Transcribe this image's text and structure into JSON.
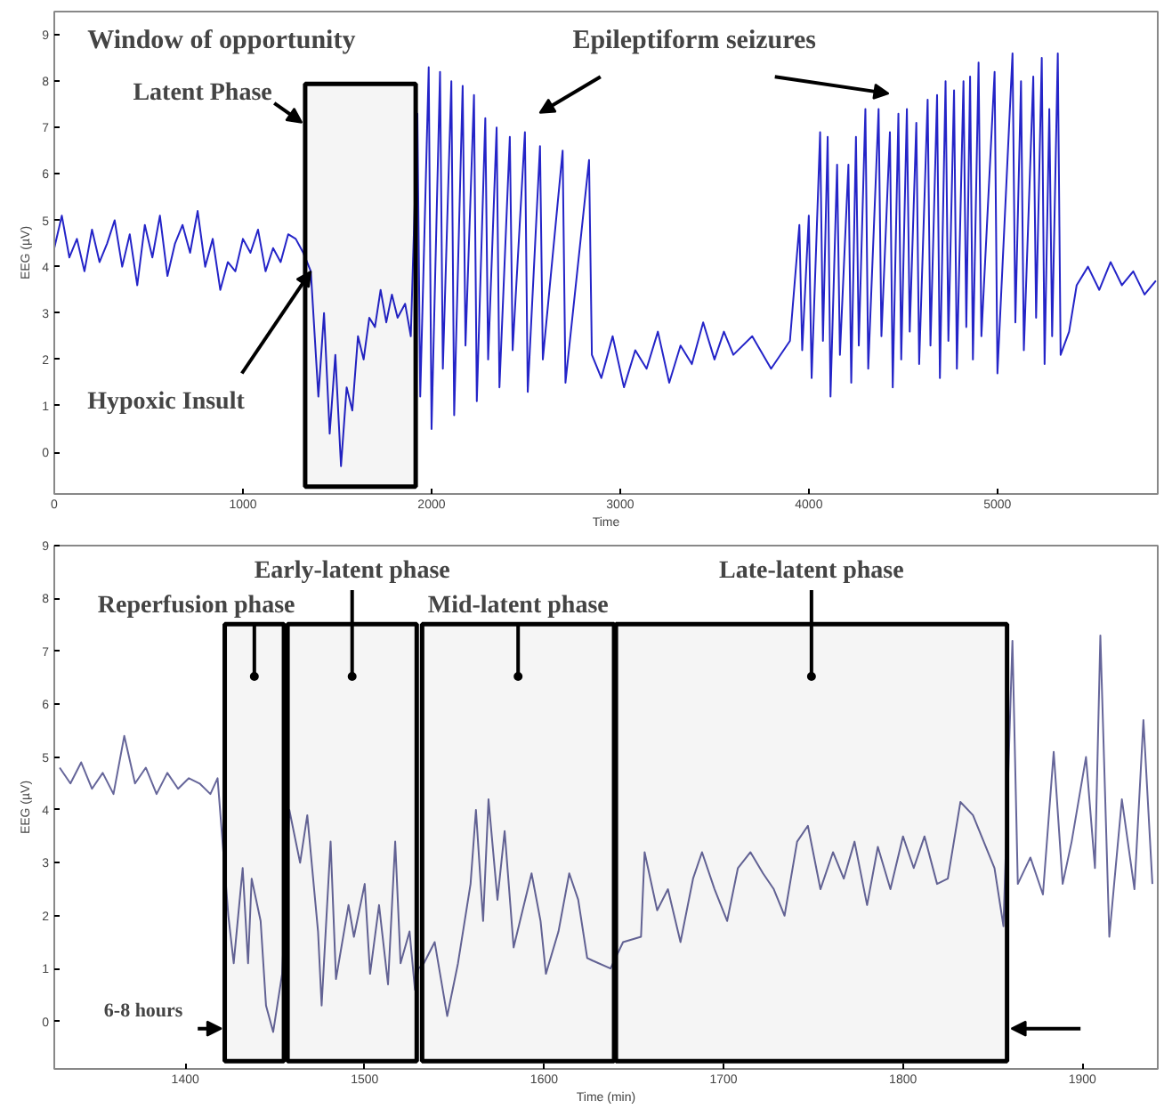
{
  "chart_data": [
    {
      "type": "line",
      "xlabel": "Time",
      "ylabel": "EEG (µV)",
      "xlim": [
        0,
        5850
      ],
      "ylim": [
        -0.9,
        9.5
      ],
      "xticks": [
        0,
        1000,
        2000,
        3000,
        4000,
        5000
      ],
      "yticks": [
        0,
        1,
        2,
        3,
        4,
        5,
        6,
        7,
        8,
        9
      ],
      "grid": false,
      "x": [
        0,
        40,
        80,
        120,
        160,
        200,
        240,
        280,
        320,
        360,
        400,
        440,
        480,
        520,
        560,
        600,
        640,
        680,
        720,
        760,
        800,
        840,
        880,
        920,
        960,
        1000,
        1040,
        1080,
        1120,
        1160,
        1200,
        1240,
        1280,
        1320,
        1360,
        1400,
        1430,
        1460,
        1490,
        1520,
        1550,
        1580,
        1610,
        1640,
        1670,
        1700,
        1730,
        1760,
        1790,
        1820,
        1860,
        1890,
        1925,
        1940,
        1985,
        2000,
        2045,
        2060,
        2105,
        2120,
        2165,
        2180,
        2225,
        2240,
        2285,
        2300,
        2345,
        2360,
        2415,
        2430,
        2495,
        2510,
        2575,
        2590,
        2695,
        2710,
        2835,
        2850,
        2900,
        2960,
        3020,
        3080,
        3140,
        3200,
        3260,
        3320,
        3380,
        3440,
        3500,
        3550,
        3600,
        3700,
        3800,
        3900,
        3950,
        3965,
        4000,
        4015,
        4060,
        4075,
        4100,
        4115,
        4150,
        4165,
        4210,
        4225,
        4250,
        4265,
        4300,
        4315,
        4370,
        4385,
        4430,
        4445,
        4475,
        4490,
        4520,
        4535,
        4570,
        4585,
        4630,
        4645,
        4680,
        4695,
        4725,
        4740,
        4770,
        4785,
        4820,
        4835,
        4855,
        4870,
        4900,
        4915,
        4985,
        5000,
        5080,
        5095,
        5125,
        5140,
        5190,
        5205,
        5235,
        5250,
        5275,
        5290,
        5320,
        5335,
        5380,
        5420,
        5480,
        5540,
        5600,
        5660,
        5720,
        5780,
        5840
      ],
      "series": [
        {
          "color": "#2424c8",
          "values": [
            4.4,
            5.1,
            4.2,
            4.6,
            3.9,
            4.8,
            4.1,
            4.5,
            5.0,
            4.0,
            4.7,
            3.6,
            4.9,
            4.2,
            5.1,
            3.8,
            4.5,
            4.9,
            4.3,
            5.2,
            4.0,
            4.6,
            3.5,
            4.1,
            3.9,
            4.6,
            4.3,
            4.8,
            3.9,
            4.4,
            4.1,
            4.7,
            4.6,
            4.3,
            3.9,
            1.2,
            3.0,
            0.4,
            2.1,
            -0.3,
            1.4,
            0.9,
            2.5,
            2.0,
            2.9,
            2.7,
            3.5,
            2.8,
            3.4,
            2.9,
            3.2,
            2.5,
            7.3,
            1.2,
            8.3,
            0.5,
            8.2,
            1.8,
            8.0,
            0.8,
            7.9,
            2.3,
            7.7,
            1.1,
            7.2,
            2.0,
            7.0,
            1.4,
            6.8,
            2.2,
            6.9,
            1.3,
            6.6,
            2.0,
            6.5,
            1.5,
            6.3,
            2.1,
            1.6,
            2.5,
            1.4,
            2.2,
            1.8,
            2.6,
            1.5,
            2.3,
            1.9,
            2.8,
            2.0,
            2.6,
            2.1,
            2.5,
            1.8,
            2.4,
            4.9,
            2.2,
            5.1,
            1.6,
            6.9,
            2.4,
            6.8,
            1.2,
            6.2,
            2.1,
            6.2,
            1.5,
            6.8,
            2.3,
            7.4,
            1.8,
            7.4,
            2.5,
            6.9,
            1.4,
            7.3,
            2.0,
            7.4,
            2.6,
            7.1,
            1.9,
            7.6,
            2.3,
            7.7,
            1.6,
            8.0,
            2.4,
            7.8,
            1.8,
            8.0,
            2.7,
            8.1,
            2.0,
            8.4,
            2.5,
            8.2,
            1.7,
            8.6,
            2.8,
            8.0,
            2.2,
            8.1,
            2.9,
            8.5,
            1.9,
            7.4,
            2.5,
            8.6,
            2.1,
            2.6,
            3.6,
            4.0,
            3.5,
            4.1,
            3.6,
            3.9,
            3.4,
            3.7
          ]
        }
      ],
      "bands": [
        {
          "axis": "x",
          "from": 1330,
          "to": 1916,
          "label": "Latent Phase",
          "color": "#000000"
        }
      ],
      "annotations": [
        "Window of opportunity",
        {
          "text": "Hypoxic Insult",
          "x": 1360,
          "y": 3.9
        },
        "Epileptiform seizures"
      ]
    },
    {
      "type": "line",
      "xlabel": "Time (min)",
      "ylabel": "EEG (µV)",
      "xlim": [
        1327,
        1942
      ],
      "ylim": [
        -0.9,
        9
      ],
      "xticks": [
        1400,
        1500,
        1600,
        1700,
        1800,
        1900
      ],
      "yticks": [
        0,
        1,
        2,
        3,
        4,
        5,
        6,
        7,
        8,
        9
      ],
      "grid": false,
      "x": [
        1330,
        1336,
        1342,
        1348,
        1354,
        1360,
        1366,
        1372,
        1378,
        1384,
        1390,
        1396,
        1402,
        1408,
        1414,
        1418,
        1424,
        1427,
        1432,
        1435,
        1437,
        1442,
        1445,
        1449,
        1454,
        1458,
        1464,
        1468,
        1474,
        1476,
        1481,
        1484,
        1491,
        1494,
        1500,
        1503,
        1508,
        1513,
        1517,
        1520,
        1525,
        1528,
        1530,
        1533,
        1539,
        1546,
        1552,
        1559,
        1562,
        1566,
        1569,
        1574,
        1578,
        1583,
        1588,
        1593,
        1598,
        1601,
        1608,
        1614,
        1619,
        1624,
        1627,
        1637,
        1644,
        1654,
        1656,
        1663,
        1669,
        1676,
        1683,
        1688,
        1695,
        1702,
        1708,
        1715,
        1722,
        1728,
        1734,
        1741,
        1747,
        1754,
        1761,
        1767,
        1773,
        1780,
        1786,
        1793,
        1800,
        1806,
        1812,
        1819,
        1825,
        1832,
        1839,
        1845,
        1851,
        1856,
        1861,
        1864,
        1871,
        1878,
        1884,
        1889,
        1894,
        1902,
        1907,
        1910,
        1915,
        1922,
        1929,
        1934,
        1939
      ],
      "series": [
        {
          "color": "#66669a",
          "values": [
            4.8,
            4.5,
            4.9,
            4.4,
            4.7,
            4.3,
            5.4,
            4.5,
            4.8,
            4.3,
            4.7,
            4.4,
            4.6,
            4.5,
            4.3,
            4.6,
            2.0,
            1.1,
            2.9,
            1.1,
            2.7,
            1.9,
            0.3,
            -0.2,
            0.9,
            4.0,
            3.0,
            3.9,
            1.7,
            0.3,
            3.4,
            0.8,
            2.2,
            1.6,
            2.6,
            0.9,
            2.2,
            0.7,
            3.4,
            1.1,
            1.7,
            0.6,
            1.0,
            1.1,
            1.5,
            0.1,
            1.1,
            2.6,
            4.0,
            1.9,
            4.2,
            2.3,
            3.6,
            1.4,
            2.1,
            2.8,
            1.9,
            0.9,
            1.7,
            2.8,
            2.3,
            1.2,
            1.15,
            1.0,
            1.5,
            1.6,
            3.2,
            2.1,
            2.5,
            1.5,
            2.7,
            3.2,
            2.5,
            1.9,
            2.9,
            3.2,
            2.8,
            2.5,
            2.0,
            3.4,
            3.7,
            2.5,
            3.2,
            2.7,
            3.4,
            2.2,
            3.3,
            2.5,
            3.5,
            2.9,
            3.5,
            2.6,
            2.7,
            4.15,
            3.9,
            3.4,
            2.9,
            1.8,
            7.2,
            2.6,
            3.1,
            2.4,
            5.1,
            2.6,
            3.4,
            5.0,
            2.9,
            7.3,
            1.6,
            4.2,
            2.5,
            5.7,
            2.6
          ]
        }
      ],
      "bands": [
        {
          "axis": "x",
          "from": 1422,
          "to": 1455,
          "label": "Reperfusion phase",
          "color": "#000000"
        },
        {
          "axis": "x",
          "from": 1457,
          "to": 1529,
          "label": "Early-latent phase",
          "color": "#000000"
        },
        {
          "axis": "x",
          "from": 1532,
          "to": 1639,
          "label": "Mid-latent phase",
          "color": "#000000"
        },
        {
          "axis": "x",
          "from": 1640,
          "to": 1858,
          "label": "Late-latent phase",
          "color": "#000000"
        }
      ],
      "annotations": [
        "6-8 hours"
      ]
    }
  ]
}
